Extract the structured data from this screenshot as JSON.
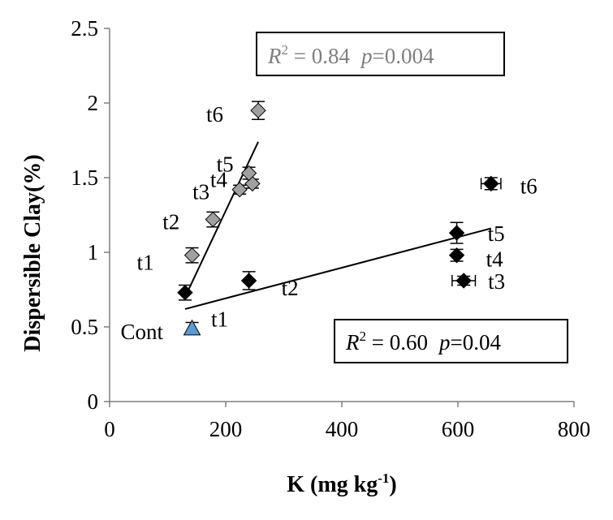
{
  "chart_data": {
    "type": "scatter",
    "xlabel": "K (mg kg",
    "xlabel_sup": "-1",
    "xlabel_end": ")",
    "ylabel": "Dispersible Clay(%)",
    "xlim": [
      0,
      800
    ],
    "ylim": [
      0,
      2.5
    ],
    "xticks": [
      0,
      200,
      400,
      600,
      800
    ],
    "xtick_labels": [
      "0",
      "200",
      "400",
      "600",
      "800"
    ],
    "yticks": [
      0,
      0.5,
      1,
      1.5,
      2,
      2.5
    ],
    "ytick_labels": [
      "0",
      "0.5",
      "1",
      "1.5",
      "2",
      "2.5"
    ],
    "grid": false,
    "series": [
      {
        "marker": "diamond",
        "color": "#a0a0a0",
        "points": [
          {
            "label": "t1",
            "x": 142,
            "y": 0.98,
            "yerr": 0.05,
            "xerr": 0
          },
          {
            "label": "t2",
            "x": 178,
            "y": 1.22,
            "yerr": 0.05,
            "xerr": 0
          },
          {
            "label": "t3",
            "x": 224,
            "y": 1.42,
            "yerr": 0.03,
            "xerr": 0
          },
          {
            "label": "t4",
            "x": 246,
            "y": 1.46,
            "yerr": 0.03,
            "xerr": 0
          },
          {
            "label": "t5",
            "x": 240,
            "y": 1.53,
            "yerr": 0.04,
            "xerr": 0
          },
          {
            "label": "t6",
            "x": 256,
            "y": 1.95,
            "yerr": 0.06,
            "xerr": 0
          }
        ],
        "trend": {
          "x": [
            130,
            256
          ],
          "y": [
            0.7,
            1.74
          ],
          "color": "#000000"
        },
        "annotation": {
          "r2": "0.84",
          "p": "0.004",
          "color": "#7f7f7f"
        }
      },
      {
        "marker": "diamond",
        "color": "#000000",
        "points": [
          {
            "label": "t1",
            "x": 130,
            "y": 0.73,
            "yerr": 0.05,
            "xerr": 0
          },
          {
            "label": "t2",
            "x": 240,
            "y": 0.81,
            "yerr": 0.06,
            "xerr": 0
          },
          {
            "label": "t3",
            "x": 610,
            "y": 0.81,
            "yerr": 0.03,
            "xerr": 20
          },
          {
            "label": "t4",
            "x": 598,
            "y": 0.98,
            "yerr": 0.04,
            "xerr": 0
          },
          {
            "label": "t5",
            "x": 598,
            "y": 1.13,
            "yerr": 0.07,
            "xerr": 0
          },
          {
            "label": "t6",
            "x": 657,
            "y": 1.46,
            "yerr": 0.04,
            "xerr": 17
          }
        ],
        "trend": {
          "x": [
            130,
            657
          ],
          "y": [
            0.62,
            1.16
          ],
          "color": "#000000"
        },
        "annotation": {
          "r2": "0.60",
          "p": "0.04",
          "color": "#000000"
        }
      },
      {
        "marker": "triangle",
        "color": "#5b9bd5",
        "points": [
          {
            "label": "Cont",
            "x": 142,
            "y": 0.49,
            "yerr": 0.04,
            "xerr": 0
          }
        ]
      }
    ],
    "annotation_text": {
      "r2_symbol": "R",
      "r2_sup": "2",
      "eq": " = ",
      "p_symbol": "p",
      "p_eq": "="
    }
  }
}
